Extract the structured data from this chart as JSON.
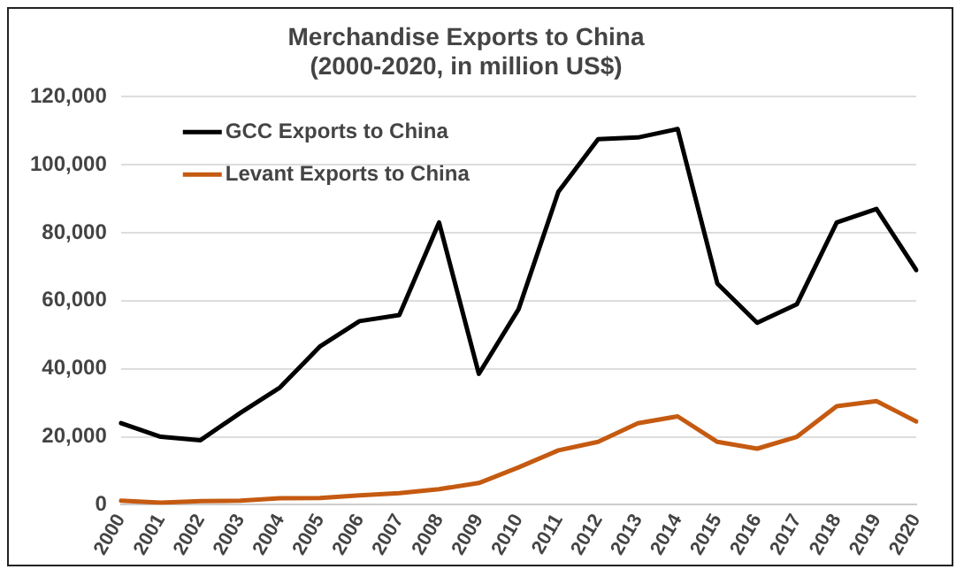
{
  "chart_data": {
    "type": "line",
    "title": [
      "Merchandise Exports to China",
      "(2000-2020, in million US$)"
    ],
    "categories": [
      "2000",
      "2001",
      "2002",
      "2003",
      "2004",
      "2005",
      "2006",
      "2007",
      "2008",
      "2009",
      "2010",
      "2011",
      "2012",
      "2013",
      "2014",
      "2015",
      "2016",
      "2017",
      "2018",
      "2019",
      "2020"
    ],
    "series": [
      {
        "name": "GCC Exports to China",
        "color": "#000000",
        "values": [
          24000,
          20000,
          19000,
          27000,
          34500,
          46500,
          54000,
          55800,
          83000,
          38500,
          57500,
          92000,
          107500,
          108000,
          110500,
          65000,
          53500,
          59000,
          83000,
          87000,
          69000
        ]
      },
      {
        "name": "Levant Exports to China",
        "color": "#c55a11",
        "values": [
          1200,
          600,
          1100,
          1200,
          1900,
          2000,
          2800,
          3400,
          4600,
          6400,
          11000,
          16000,
          18500,
          24000,
          26000,
          18500,
          16500,
          20000,
          29000,
          30500,
          24500
        ]
      }
    ],
    "ylim": [
      0,
      120000
    ],
    "yticks": [
      0,
      {
        "value": 20000,
        "label": "20,000"
      },
      {
        "value": 40000,
        "label": "40,000"
      },
      {
        "value": 60000,
        "label": "60,000"
      },
      {
        "value": 80000,
        "label": "80,000"
      },
      {
        "value": 100000,
        "label": "100,000"
      },
      {
        "value": 120000,
        "label": "120,000"
      }
    ],
    "grid": "y",
    "legend": "top left",
    "marker": "none",
    "line_style": "solid"
  }
}
